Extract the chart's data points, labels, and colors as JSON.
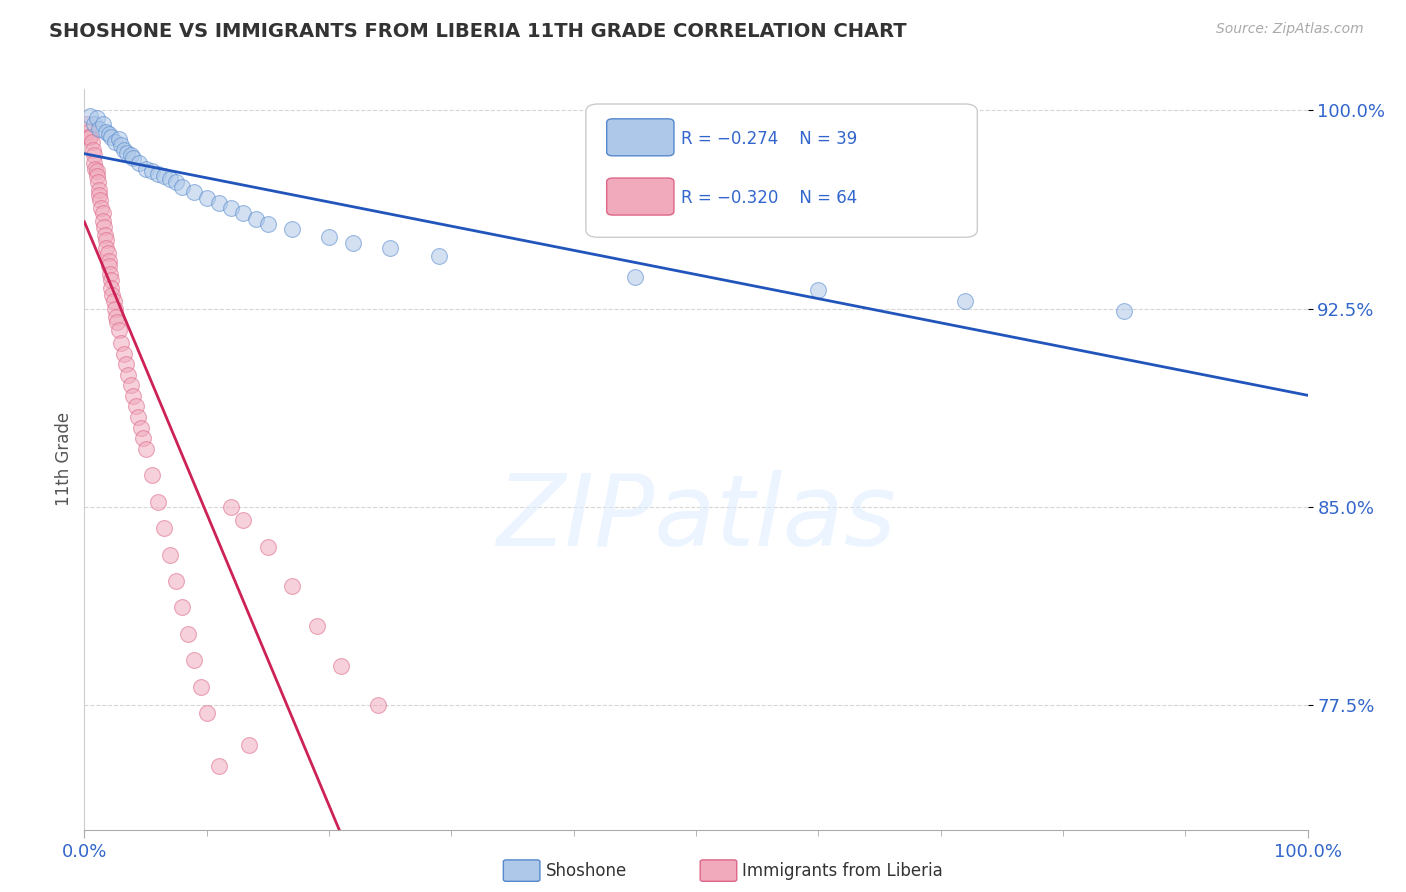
{
  "title": "SHOSHONE VS IMMIGRANTS FROM LIBERIA 11TH GRADE CORRELATION CHART",
  "source_text": "Source: ZipAtlas.com",
  "ylabel": "11th Grade",
  "xmin": 0.0,
  "xmax": 1.0,
  "ymin": 0.728,
  "ymax": 1.008,
  "y_tick_labels": [
    "77.5%",
    "85.0%",
    "92.5%",
    "100.0%"
  ],
  "y_tick_positions": [
    0.775,
    0.85,
    0.925,
    1.0
  ],
  "shoshone_color": "#adc8e8",
  "shoshone_edge": "#5588cc",
  "liberia_color": "#f0aabc",
  "liberia_edge": "#dd6688",
  "trend_blue": "#2255bb",
  "trend_pink": "#cc2255",
  "legend_R1": "R = −0.274",
  "legend_N1": "N = 39",
  "legend_R2": "R = −0.320",
  "legend_N2": "N = 64",
  "legend_label1": "Shoshone",
  "legend_label2": "Immigrants from Liberia",
  "shoshone_x": [
    0.005,
    0.008,
    0.01,
    0.012,
    0.015,
    0.018,
    0.02,
    0.022,
    0.025,
    0.028,
    0.03,
    0.032,
    0.035,
    0.038,
    0.04,
    0.045,
    0.05,
    0.055,
    0.06,
    0.065,
    0.07,
    0.075,
    0.08,
    0.09,
    0.1,
    0.11,
    0.12,
    0.13,
    0.14,
    0.15,
    0.17,
    0.2,
    0.22,
    0.25,
    0.29,
    0.45,
    0.6,
    0.72,
    0.85
  ],
  "shoshone_y": [
    0.998,
    0.995,
    0.997,
    0.993,
    0.995,
    0.992,
    0.991,
    0.99,
    0.988,
    0.989,
    0.987,
    0.985,
    0.984,
    0.983,
    0.982,
    0.98,
    0.978,
    0.977,
    0.976,
    0.975,
    0.974,
    0.973,
    0.971,
    0.969,
    0.967,
    0.965,
    0.963,
    0.961,
    0.959,
    0.957,
    0.955,
    0.952,
    0.95,
    0.948,
    0.945,
    0.937,
    0.932,
    0.928,
    0.924
  ],
  "liberia_x": [
    0.002,
    0.003,
    0.004,
    0.005,
    0.006,
    0.007,
    0.008,
    0.008,
    0.009,
    0.01,
    0.01,
    0.011,
    0.012,
    0.012,
    0.013,
    0.014,
    0.015,
    0.015,
    0.016,
    0.017,
    0.018,
    0.018,
    0.019,
    0.02,
    0.02,
    0.021,
    0.022,
    0.022,
    0.023,
    0.024,
    0.025,
    0.026,
    0.027,
    0.028,
    0.03,
    0.032,
    0.034,
    0.036,
    0.038,
    0.04,
    0.042,
    0.044,
    0.046,
    0.048,
    0.05,
    0.055,
    0.06,
    0.065,
    0.07,
    0.075,
    0.08,
    0.085,
    0.09,
    0.095,
    0.1,
    0.11,
    0.12,
    0.13,
    0.15,
    0.17,
    0.19,
    0.21,
    0.24,
    0.135
  ],
  "liberia_y": [
    0.995,
    0.992,
    0.99,
    0.99,
    0.988,
    0.985,
    0.983,
    0.98,
    0.978,
    0.977,
    0.975,
    0.973,
    0.97,
    0.968,
    0.966,
    0.963,
    0.961,
    0.958,
    0.956,
    0.953,
    0.951,
    0.948,
    0.946,
    0.943,
    0.941,
    0.938,
    0.936,
    0.933,
    0.93,
    0.928,
    0.925,
    0.922,
    0.92,
    0.917,
    0.912,
    0.908,
    0.904,
    0.9,
    0.896,
    0.892,
    0.888,
    0.884,
    0.88,
    0.876,
    0.872,
    0.862,
    0.852,
    0.842,
    0.832,
    0.822,
    0.812,
    0.802,
    0.792,
    0.782,
    0.772,
    0.752,
    0.85,
    0.845,
    0.835,
    0.82,
    0.805,
    0.79,
    0.775,
    0.76
  ],
  "background_color": "#ffffff",
  "grid_color": "#cccccc",
  "title_color": "#333333",
  "axis_color": "#3366cc",
  "figsize": [
    14.06,
    8.92
  ],
  "dpi": 100
}
